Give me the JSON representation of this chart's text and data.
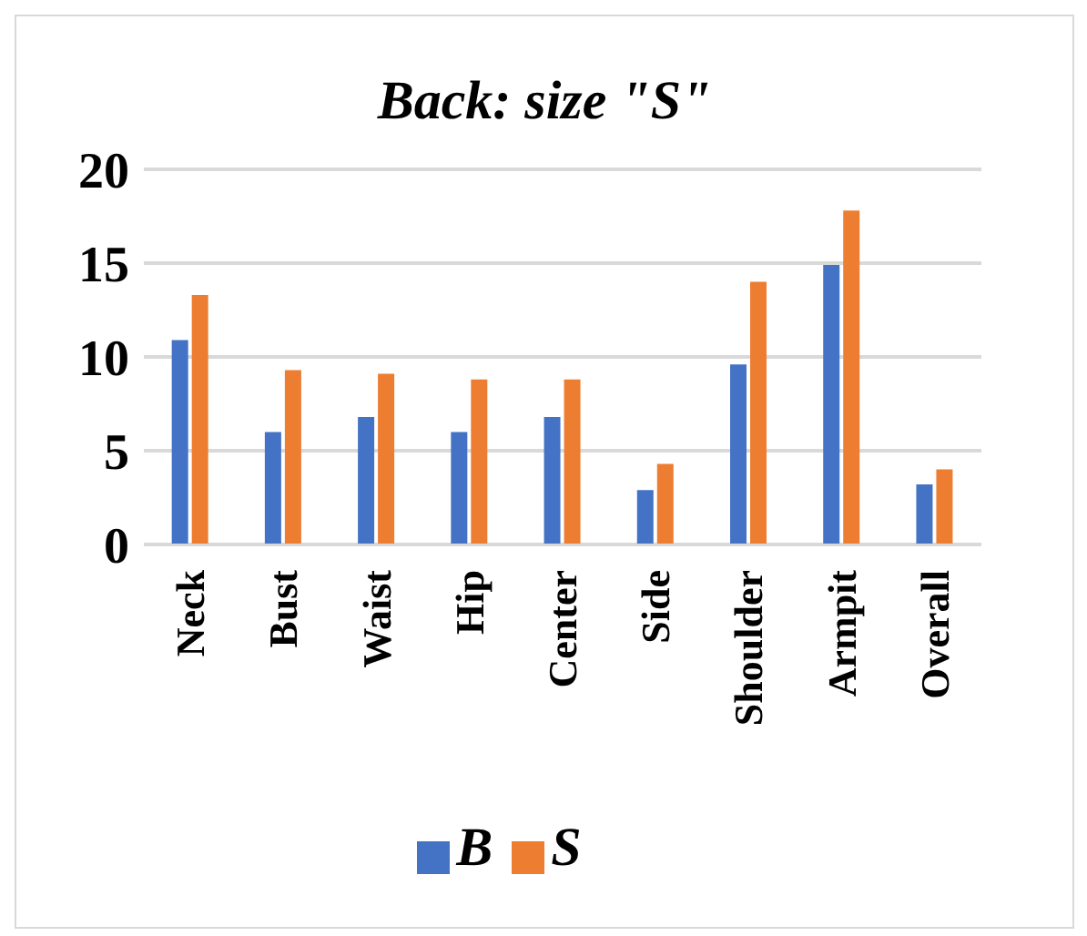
{
  "chart_data": {
    "type": "bar",
    "title": "Back: size \"S\"",
    "categories": [
      "Neck",
      "Bust",
      "Waist",
      "Hip",
      "Center",
      "Side",
      "Shoulder",
      "Armpit",
      "Overall"
    ],
    "series": [
      {
        "name": "B",
        "color": "#4472c4",
        "values": [
          10.9,
          6,
          6.8,
          6,
          6.8,
          2.9,
          9.6,
          14.9,
          3.2
        ]
      },
      {
        "name": "S",
        "color": "#ed7d31",
        "values": [
          13.3,
          9.3,
          9.1,
          8.8,
          8.8,
          4.3,
          14,
          17.8,
          4
        ]
      }
    ],
    "ylim": [
      0,
      20
    ],
    "yticks": [
      0,
      5,
      10,
      15,
      20
    ],
    "grid": "y",
    "legend": "bottom"
  }
}
